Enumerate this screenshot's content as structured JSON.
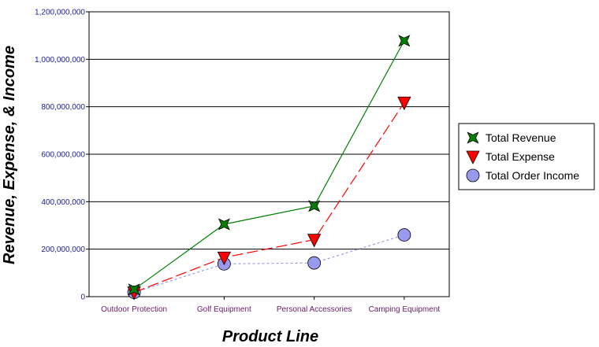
{
  "chart_data": {
    "type": "line",
    "title": "",
    "xlabel": "Product Line",
    "ylabel": "Revenue, Expense, & Income",
    "categories": [
      "Outdoor Protection",
      "Golf Equipment",
      "Personal Accessories",
      "Camping Equipment"
    ],
    "ylim": [
      0,
      1200000000
    ],
    "yticks": [
      0,
      200000000,
      400000000,
      600000000,
      800000000,
      1000000000,
      1200000000
    ],
    "ytick_labels": [
      "0",
      "200,000,000",
      "400,000,000",
      "600,000,000",
      "800,000,000",
      "1,000,000,000",
      "1,200,000,000"
    ],
    "grid": "horizontal",
    "legend_position": "right",
    "series": [
      {
        "name": "Total Revenue",
        "values": [
          30000000,
          305000000,
          382000000,
          1078000000
        ],
        "color": "#008000",
        "marker": "star",
        "line": "solid"
      },
      {
        "name": "Total Expense",
        "values": [
          18000000,
          165000000,
          240000000,
          818000000
        ],
        "color": "#ff0000",
        "marker": "triangle-down",
        "line": "long-dash"
      },
      {
        "name": "Total Order Income",
        "values": [
          18000000,
          138000000,
          142000000,
          260000000
        ],
        "color": "#9999ee",
        "marker": "circle",
        "line": "dotted"
      }
    ]
  }
}
